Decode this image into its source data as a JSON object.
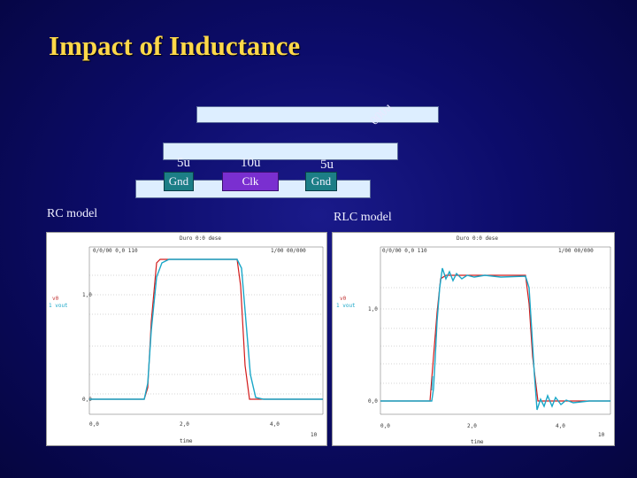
{
  "title": "Impact of Inductance",
  "diagram": {
    "top_label_rot": "000u",
    "wire_left_num": "5u",
    "wire_left_label": "Gnd",
    "wire_mid_num": "10u",
    "wire_mid_label": "Clk",
    "wire_right_num": "5u",
    "wire_right_label": "Gnd"
  },
  "models": {
    "left": "RC model",
    "right": "RLC model"
  },
  "plots": {
    "left": {
      "header": "Duro 0:0 dese",
      "row1_left": "0/0/00 0,0 110",
      "row1_right": "1/00 00/000",
      "y_hi": "1,0",
      "y_lo": "0,0",
      "legend1": "v0",
      "legend2": "1 vout",
      "x0": "0,0",
      "x1": "2,0",
      "x2": "4,0",
      "xunit": "10",
      "xlabel": "time"
    },
    "right": {
      "header": "Duro 0:0 dese",
      "row1_left": "0/0/00 0,0 110",
      "row1_right": "1/00 00/000",
      "y_hi": "1,0",
      "y_lo": "0,0",
      "legend1": "v0",
      "legend2": "1 vout",
      "x0": "0,0",
      "x1": "2,0",
      "x2": "4,0",
      "xunit": "10",
      "xlabel": "time"
    }
  },
  "colors": {
    "title": "#ffd84a",
    "input_trace": "#d21a1a",
    "output_trace": "#1aa7c8"
  }
}
